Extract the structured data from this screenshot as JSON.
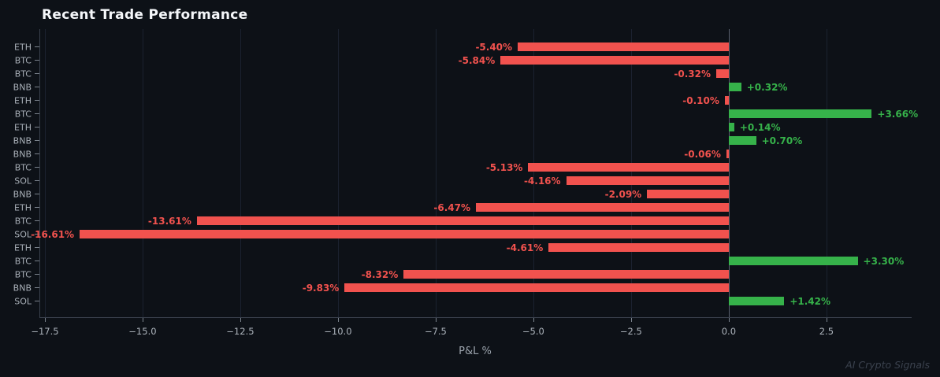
{
  "title": "Recent Trade Performance",
  "watermark": "AI Crypto Signals",
  "chart_data": {
    "type": "bar",
    "orientation": "horizontal",
    "title": "Recent Trade Performance",
    "xlabel": "P&L %",
    "ylabel": "",
    "categories": [
      "ETH",
      "BTC",
      "BTC",
      "BNB",
      "ETH",
      "BTC",
      "ETH",
      "BNB",
      "BNB",
      "BTC",
      "SOL",
      "BNB",
      "ETH",
      "BTC",
      "SOL",
      "ETH",
      "BTC",
      "BTC",
      "BNB",
      "SOL"
    ],
    "values": [
      -5.4,
      -5.84,
      -0.32,
      0.32,
      -0.1,
      3.66,
      0.14,
      0.7,
      -0.06,
      -5.13,
      -4.16,
      -2.09,
      -6.47,
      -13.61,
      -16.61,
      -4.61,
      3.3,
      -8.32,
      -9.83,
      1.42
    ],
    "value_labels": [
      "-5.40%",
      "-5.84%",
      "-0.32%",
      "+0.32%",
      "-0.10%",
      "+3.66%",
      "+0.14%",
      "+0.70%",
      "-0.06%",
      "-5.13%",
      "-4.16%",
      "-2.09%",
      "-6.47%",
      "-13.61%",
      "-16.61%",
      "-4.61%",
      "+3.30%",
      "-8.32%",
      "-9.83%",
      "+1.42%"
    ],
    "xlim": [
      -17.64,
      4.68
    ],
    "x_ticks": [
      -17.5,
      -15.0,
      -12.5,
      -10.0,
      -7.5,
      -5.0,
      -2.5,
      0.0,
      2.5
    ],
    "x_tick_labels": [
      "−17.5",
      "−15.0",
      "−12.5",
      "−10.0",
      "−7.5",
      "−5.0",
      "−2.5",
      "0.0",
      "2.5"
    ],
    "grid": true,
    "zero_line": true,
    "legend": "none",
    "colors": {
      "positive": "#36b24a",
      "negative": "#f1524e",
      "background": "#0d1117",
      "grid": "#1b2230",
      "zero_line": "#59616e",
      "spine": "#3a414d",
      "tick_label": "#adb4bc",
      "title": "#f5f7fa",
      "axis_label": "#9ba3ac",
      "watermark": "#3b424e"
    }
  }
}
